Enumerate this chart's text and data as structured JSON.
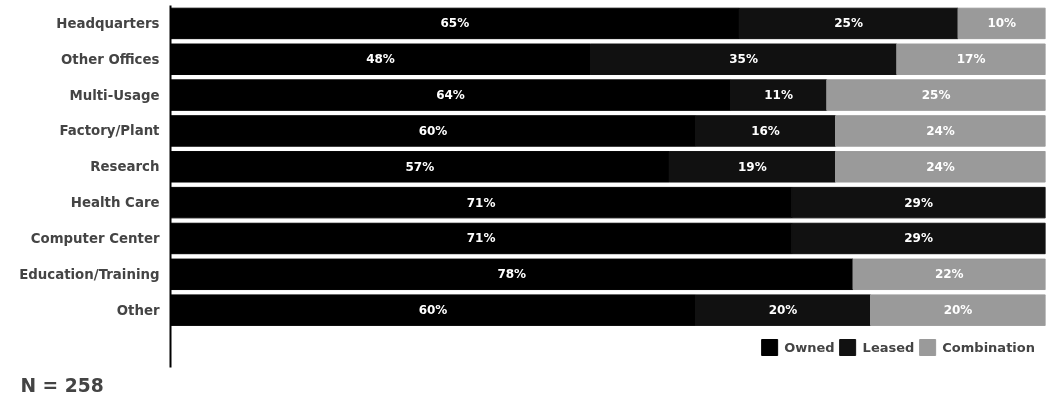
{
  "chart_data": {
    "type": "bar",
    "orientation": "horizontal",
    "stacked": true,
    "categories": [
      "Headquarters",
      "Other Offices",
      "Multi-Usage",
      "Factory/Plant",
      "Research",
      "Health Care",
      "Computer Center",
      "Education/Training",
      "Other"
    ],
    "series": [
      {
        "name": "Owned",
        "color": "#000000",
        "values": [
          65,
          48,
          64,
          60,
          57,
          71,
          71,
          78,
          60
        ],
        "value_labels": [
          "65%",
          "48%",
          "64%",
          "60%",
          "57%",
          "71%",
          "71%",
          "78%",
          "60%"
        ]
      },
      {
        "name": "Leased",
        "color": "#111111",
        "values": [
          25,
          35,
          11,
          16,
          19,
          29,
          29,
          null,
          20
        ],
        "value_labels": [
          "25%",
          "35%",
          "11%",
          "16%",
          "19%",
          "29%",
          "29%",
          null,
          "20%"
        ]
      },
      {
        "name": "Combination",
        "color": "#9a9a9a",
        "values": [
          10,
          17,
          25,
          24,
          24,
          null,
          null,
          22,
          20
        ],
        "value_labels": [
          "10%",
          "17%",
          "25%",
          "24%",
          "24%",
          null,
          null,
          "22%",
          "20%"
        ]
      }
    ],
    "xlim": [
      0,
      100
    ],
    "tick_labels": "y",
    "legend": "bottom right",
    "annotations": [
      "N = 258"
    ]
  }
}
